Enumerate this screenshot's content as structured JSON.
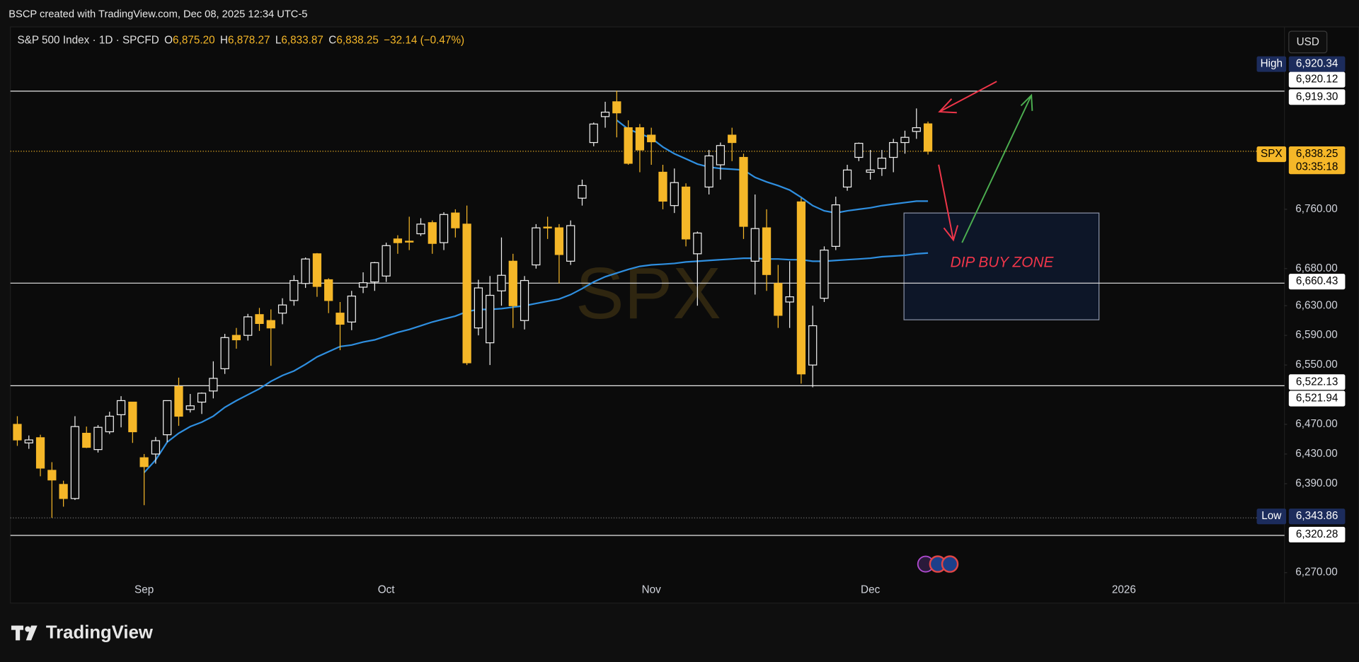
{
  "top_bar": {
    "text": "BSCP created with TradingView.com, Dec 08, 2025 12:34 UTC-5"
  },
  "currency_button": "USD",
  "branding": "TradingView",
  "chart_data": {
    "type": "candlestick",
    "header": {
      "symbol": "S&P 500 Index · 1D · SPCFD",
      "ohlc": [
        {
          "key": "O",
          "value": "6,875.20"
        },
        {
          "key": "H",
          "value": "6,878.27"
        },
        {
          "key": "L",
          "value": "6,833.87"
        },
        {
          "key": "C",
          "value": "6,838.25"
        }
      ],
      "change": "−32.14 (−0.47%)"
    },
    "watermark": "SPX",
    "up_color": "#f0f0f0",
    "down_color": "#f5b728",
    "open": [
      6470,
      6445,
      6452,
      6408,
      6389,
      6370,
      6458,
      6436,
      6460,
      6483,
      6500,
      6425,
      6430,
      6456,
      6521,
      6490,
      6500,
      6515,
      6545,
      6590,
      6590,
      6618,
      6610,
      6620,
      6637,
      6660,
      6700,
      6665,
      6620,
      6608,
      6655,
      6662,
      6670,
      6720,
      6717,
      6727,
      6742,
      6715,
      6755,
      6740,
      6600,
      6580,
      6650,
      6690,
      6610,
      6685,
      6736,
      6735,
      6690,
      6775,
      6850,
      6885,
      6905,
      6870,
      6870,
      6860,
      6810,
      6765,
      6790,
      6700,
      6790,
      6820,
      6860,
      6830,
      6690,
      6735,
      6660,
      6635,
      6770,
      6550,
      6640,
      6710,
      6790,
      6830,
      6810,
      6815,
      6830,
      6850,
      6865,
      6875.2
    ],
    "high": [
      6481,
      6455,
      6456,
      6419,
      6394,
      6481,
      6467,
      6469,
      6487,
      6508,
      6500,
      6430,
      6453,
      6502,
      6533,
      6511,
      6513,
      6555,
      6592,
      6600,
      6619,
      6627,
      6625,
      6640,
      6671,
      6695,
      6701,
      6667,
      6635,
      6650,
      6675,
      6689,
      6715,
      6725,
      6750,
      6748,
      6745,
      6756,
      6760,
      6765,
      6665,
      6670,
      6722,
      6700,
      6670,
      6740,
      6750,
      6740,
      6745,
      6800,
      6877,
      6905,
      6920,
      6880,
      6875,
      6870,
      6820,
      6815,
      6795,
      6730,
      6840,
      6850,
      6870,
      6835,
      6780,
      6760,
      6685,
      6690,
      6775,
      6630,
      6710,
      6777,
      6820,
      6850,
      6840,
      6840,
      6855,
      6866,
      6896,
      6878.27
    ],
    "low": [
      6441,
      6437,
      6400,
      6344,
      6359,
      6368,
      6438,
      6432,
      6457,
      6466,
      6445,
      6361,
      6417,
      6446,
      6468,
      6486,
      6484,
      6505,
      6538,
      6572,
      6583,
      6596,
      6549,
      6605,
      6630,
      6654,
      6642,
      6620,
      6570,
      6597,
      6647,
      6650,
      6662,
      6700,
      6705,
      6724,
      6700,
      6705,
      6722,
      6550,
      6590,
      6550,
      6630,
      6600,
      6598,
      6680,
      6720,
      6660,
      6685,
      6765,
      6845,
      6870,
      6857,
      6820,
      6810,
      6820,
      6760,
      6755,
      6710,
      6630,
      6780,
      6800,
      6825,
      6720,
      6645,
      6650,
      6600,
      6600,
      6525,
      6520,
      6635,
      6705,
      6785,
      6825,
      6800,
      6805,
      6810,
      6835,
      6855,
      6833.87
    ],
    "close": [
      6449,
      6449,
      6411,
      6395,
      6370,
      6467,
      6439,
      6466,
      6481,
      6502,
      6460,
      6413,
      6448,
      6502,
      6481,
      6495,
      6512,
      6532,
      6587,
      6584,
      6615,
      6606,
      6600,
      6631,
      6664,
      6693,
      6656,
      6637,
      6605,
      6643,
      6661,
      6688,
      6711,
      6715,
      6716,
      6740,
      6714,
      6753,
      6735,
      6553,
      6654,
      6644,
      6671,
      6630,
      6664,
      6735,
      6735,
      6699,
      6738,
      6792,
      6875,
      6891,
      6890,
      6822,
      6840,
      6851,
      6771,
      6796,
      6720,
      6728,
      6832,
      6846,
      6850,
      6737,
      6734,
      6672,
      6617,
      6642,
      6538,
      6603,
      6705,
      6766,
      6813,
      6849,
      6813,
      6829,
      6850,
      6857,
      6870,
      6838.25
    ],
    "moving_averages": [
      {
        "color": "#2f8fe0",
        "values": [
          null,
          null,
          null,
          null,
          null,
          null,
          null,
          null,
          null,
          null,
          null,
          null,
          null,
          null,
          null,
          null,
          null,
          null,
          null,
          null,
          null,
          null,
          null,
          null,
          null,
          null,
          null,
          null,
          null,
          null,
          null,
          null,
          null,
          null,
          null,
          null,
          null,
          null,
          null,
          null,
          null,
          null,
          null,
          null,
          null,
          null,
          null,
          null,
          null,
          null,
          null,
          null,
          6880,
          6868,
          6862,
          6856,
          6844,
          6835,
          6828,
          6821,
          6817,
          6815,
          6814,
          6813,
          6803,
          6797,
          6792,
          6786,
          6776,
          6765,
          6758,
          6755,
          6758,
          6760,
          6762,
          6765,
          6767,
          6769,
          6771,
          6771
        ]
      },
      {
        "color": "#2f8fe0",
        "values": [
          null,
          null,
          null,
          null,
          null,
          null,
          null,
          null,
          null,
          null,
          null,
          6405,
          6422,
          6446,
          6458,
          6467,
          6473,
          6481,
          6493,
          6502,
          6510,
          6518,
          6528,
          6536,
          6542,
          6551,
          6561,
          6568,
          6575,
          6577,
          6581,
          6584,
          6589,
          6594,
          6598,
          6603,
          6608,
          6612,
          6616,
          6622,
          6625,
          6625,
          6626,
          6628,
          6630,
          6633,
          6636,
          6639,
          6645,
          6653,
          6662,
          6669,
          6674,
          6679,
          6683,
          6685,
          6686,
          6687,
          6689,
          6690,
          6691,
          6692,
          6693,
          6694,
          6694,
          6693,
          6693,
          6692,
          6692,
          6690,
          6690,
          6691,
          6692,
          6693,
          6694,
          6696,
          6697,
          6698,
          6700,
          6701
        ]
      }
    ],
    "ylim": [
      6229,
      7006
    ],
    "yticks": [
      {
        "value": 6760,
        "label": "6,760.00"
      },
      {
        "value": 6680,
        "label": "6,680.00"
      },
      {
        "value": 6630,
        "label": "6,630.00"
      },
      {
        "value": 6590,
        "label": "6,590.00"
      },
      {
        "value": 6550,
        "label": "6,550.00"
      },
      {
        "value": 6470,
        "label": "6,470.00"
      },
      {
        "value": 6430,
        "label": "6,430.00"
      },
      {
        "value": 6390,
        "label": "6,390.00"
      },
      {
        "value": 6270,
        "label": "6,270.00"
      }
    ],
    "xticks": [
      {
        "value": 11,
        "label": "Sep"
      },
      {
        "value": 32,
        "label": "Oct"
      },
      {
        "value": 55,
        "label": "Nov"
      },
      {
        "value": 74,
        "label": "Dec"
      },
      {
        "value": 96,
        "label": "2026"
      }
    ],
    "grid": false,
    "price_labels": [
      {
        "value": 6920.34,
        "label": "6,920.34",
        "tag": "High",
        "style": "navy",
        "line": "none"
      },
      {
        "value": 6920.12,
        "label": "6,920.12",
        "style": "white",
        "line": "none"
      },
      {
        "value": 6919.3,
        "label": "6,919.30",
        "style": "white",
        "line": "solid"
      },
      {
        "value": 6838.25,
        "label": "6,838.25",
        "tag": "SPX",
        "countdown": "03:35:18",
        "style": "yellow",
        "line": "dotted"
      },
      {
        "value": 6660.43,
        "label": "6,660.43",
        "style": "white",
        "line": "solid"
      },
      {
        "value": 6522.13,
        "label": "6,522.13",
        "style": "white",
        "line": "solid"
      },
      {
        "value": 6521.94,
        "label": "6,521.94",
        "style": "white",
        "line": "none"
      },
      {
        "value": 6343.86,
        "label": "6,343.86",
        "tag": "Low",
        "style": "navy",
        "line": "dotted"
      },
      {
        "value": 6320.28,
        "label": "6,320.28",
        "style": "white",
        "line": "solid"
      }
    ],
    "zone": {
      "label": "DIP BUY ZONE",
      "top": 6755,
      "bottom": 6611
    }
  }
}
